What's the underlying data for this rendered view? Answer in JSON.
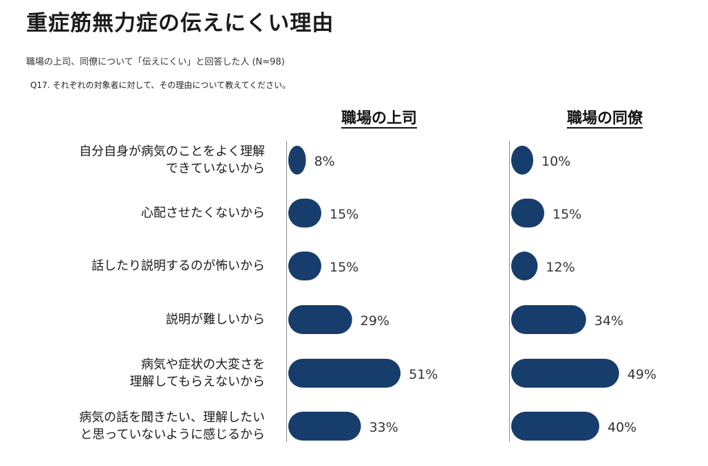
{
  "header": {
    "title": "重症筋無力症の伝えにくい理由",
    "subtitle": "職場の上司、同僚について「伝えにくい」と回答した人 (N=98)",
    "question": "Q17. それぞれの対象者に対して、その理由について教えてください。"
  },
  "colors": {
    "bar": "#163d6c",
    "axis": "#888888"
  },
  "chart_data": {
    "type": "bar",
    "orientation": "horizontal",
    "categories": [
      [
        "自分自身が病気のことをよく理解",
        "できていないから"
      ],
      [
        "心配させたくないから"
      ],
      [
        "話したり説明するのが怖いから"
      ],
      [
        "説明が難しいから"
      ],
      [
        "病気や症状の大変さを",
        "理解してもらえないから"
      ],
      [
        "病気の話を聞きたい、理解したい",
        "と思っていないように感じるから"
      ]
    ],
    "series": [
      {
        "name": "職場の上司",
        "values": [
          8,
          15,
          15,
          29,
          51,
          33
        ],
        "labels": [
          "8%",
          "15%",
          "15%",
          "29%",
          "51%",
          "33%"
        ]
      },
      {
        "name": "職場の同僚",
        "values": [
          10,
          15,
          12,
          34,
          49,
          40
        ],
        "labels": [
          "10%",
          "15%",
          "12%",
          "34%",
          "49%",
          "40%"
        ]
      }
    ],
    "unit": "%"
  }
}
